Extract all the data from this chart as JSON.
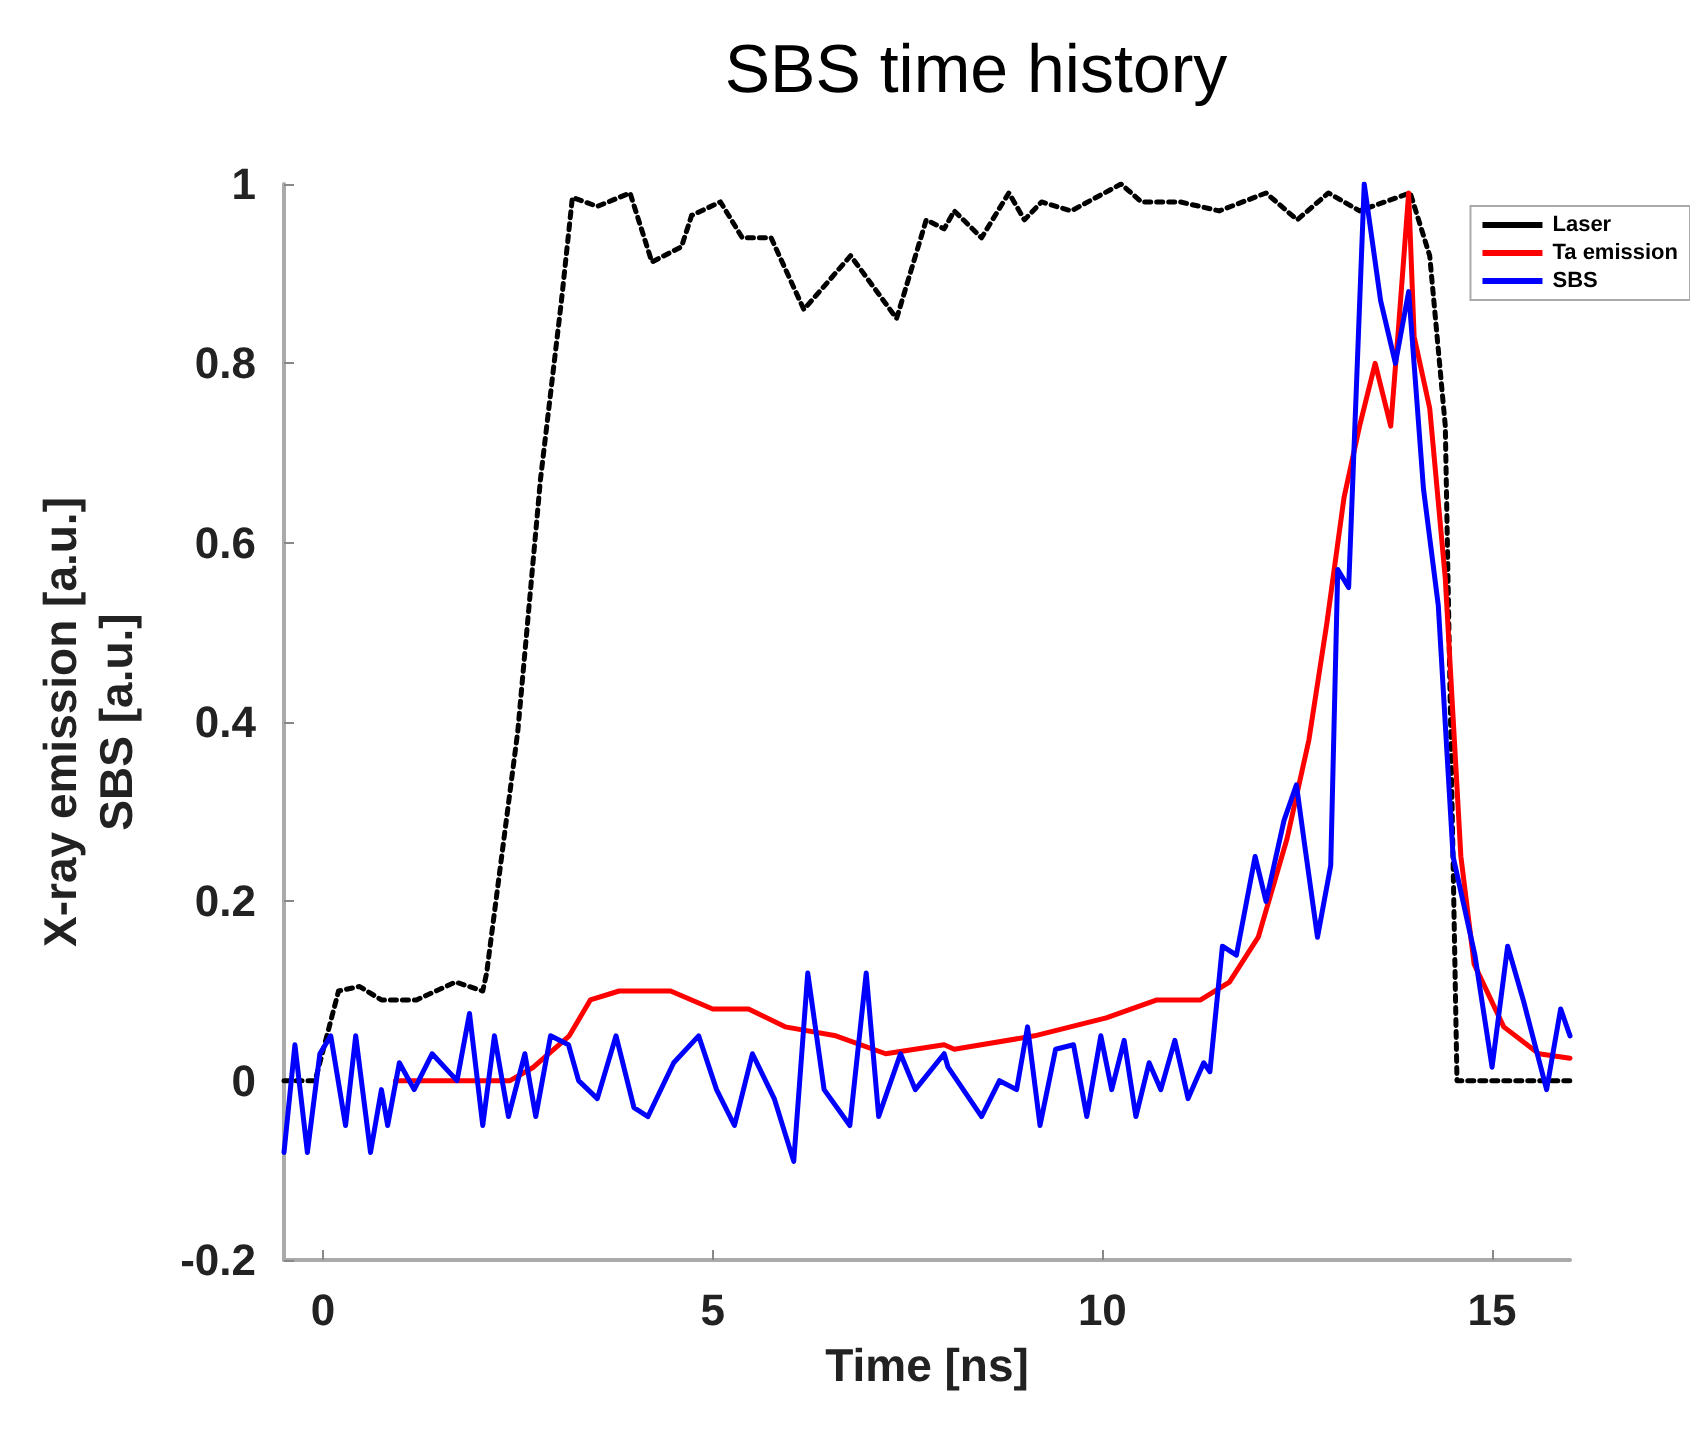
{
  "chart_data": {
    "type": "line",
    "title": "SBS time history",
    "xlabel": "Time [ns]",
    "ylabel": "X-ray emission [a.u.]\nSBS [a.u.]",
    "xlim": [
      -0.5,
      16
    ],
    "xticks": [
      0,
      5,
      10,
      15
    ],
    "ylim": [
      -0.2,
      1
    ],
    "yticks": [
      -0.2,
      0,
      0.2,
      0.4,
      0.6,
      0.8,
      1
    ],
    "grid": false,
    "legend": "top right",
    "marker": "none",
    "series": [
      {
        "name": "Laser",
        "color": "#000000",
        "line_style": "dotted",
        "x": [
          -0.5,
          -0.1,
          0.2,
          0.47,
          0.75,
          1.2,
          1.7,
          2.05,
          2.1,
          2.5,
          2.79,
          3.06,
          3.2,
          3.52,
          3.94,
          4.22,
          4.6,
          4.73,
          5.1,
          5.38,
          5.75,
          6.17,
          6.77,
          7.36,
          7.74,
          7.97,
          8.1,
          8.45,
          8.8,
          9.0,
          9.22,
          9.6,
          10.24,
          10.5,
          11.0,
          11.5,
          12.1,
          12.5,
          12.9,
          13.3,
          13.95,
          14.2,
          14.4,
          14.55,
          16.0
        ],
        "values": [
          0,
          0,
          0.1,
          0.105,
          0.09,
          0.09,
          0.11,
          0.1,
          0.12,
          0.39,
          0.67,
          0.87,
          0.985,
          0.975,
          0.99,
          0.913,
          0.93,
          0.965,
          0.98,
          0.94,
          0.94,
          0.86,
          0.92,
          0.85,
          0.96,
          0.95,
          0.97,
          0.94,
          0.99,
          0.96,
          0.98,
          0.97,
          1.0,
          0.98,
          0.98,
          0.97,
          0.99,
          0.96,
          0.99,
          0.97,
          0.99,
          0.92,
          0.73,
          0,
          0
        ]
      },
      {
        "name": "Ta emission",
        "color": "#ff0000",
        "line_style": "solid",
        "x": [
          0.93,
          2.4,
          2.7,
          3.16,
          3.43,
          3.8,
          4.46,
          5.0,
          5.46,
          5.93,
          6.58,
          7.22,
          7.97,
          8.1,
          9.13,
          10.05,
          10.7,
          11.26,
          11.63,
          12.0,
          12.37,
          12.65,
          12.88,
          13.1,
          13.3,
          13.5,
          13.7,
          13.8,
          13.93,
          14.0,
          14.2,
          14.4,
          14.6,
          14.77,
          15.15,
          15.6,
          16.0
        ],
        "values": [
          0,
          0,
          0.015,
          0.05,
          0.09,
          0.1,
          0.1,
          0.08,
          0.08,
          0.06,
          0.05,
          0.03,
          0.04,
          0.035,
          0.05,
          0.07,
          0.09,
          0.09,
          0.11,
          0.16,
          0.27,
          0.38,
          0.51,
          0.65,
          0.73,
          0.8,
          0.73,
          0.84,
          0.99,
          0.83,
          0.75,
          0.56,
          0.25,
          0.13,
          0.06,
          0.03,
          0.025
        ]
      },
      {
        "name": "SBS",
        "color": "#0000ff",
        "line_style": "solid",
        "x": [
          -0.5,
          -0.36,
          -0.2,
          -0.04,
          0.1,
          0.29,
          0.42,
          0.61,
          0.75,
          0.83,
          0.98,
          1.17,
          1.4,
          1.72,
          1.88,
          2.05,
          2.2,
          2.38,
          2.59,
          2.73,
          2.92,
          3.15,
          3.28,
          3.52,
          3.76,
          3.99,
          4.17,
          4.5,
          4.82,
          5.05,
          5.28,
          5.51,
          5.79,
          6.04,
          6.22,
          6.43,
          6.76,
          6.97,
          7.13,
          7.41,
          7.6,
          7.97,
          8.02,
          8.45,
          8.68,
          8.9,
          9.04,
          9.2,
          9.4,
          9.63,
          9.8,
          9.98,
          10.12,
          10.28,
          10.43,
          10.6,
          10.75,
          10.93,
          11.1,
          11.3,
          11.38,
          11.54,
          11.72,
          11.96,
          12.1,
          12.33,
          12.49,
          12.6,
          12.76,
          12.93,
          13.02,
          13.16,
          13.36,
          13.57,
          13.76,
          13.93,
          14.12,
          14.31,
          14.5,
          14.78,
          15.0,
          15.2,
          15.4,
          15.7,
          15.88,
          16.0
        ],
        "values": [
          -0.08,
          0.04,
          -0.08,
          0.03,
          0.05,
          -0.05,
          0.05,
          -0.08,
          -0.01,
          -0.05,
          0.02,
          -0.01,
          0.03,
          0.0,
          0.075,
          -0.05,
          0.05,
          -0.04,
          0.03,
          -0.04,
          0.05,
          0.04,
          0.0,
          -0.02,
          0.05,
          -0.03,
          -0.04,
          0.02,
          0.05,
          -0.01,
          -0.05,
          0.03,
          -0.02,
          -0.09,
          0.12,
          -0.01,
          -0.05,
          0.12,
          -0.04,
          0.03,
          -0.01,
          0.03,
          0.015,
          -0.04,
          0.0,
          -0.01,
          0.06,
          -0.05,
          0.035,
          0.04,
          -0.04,
          0.05,
          -0.01,
          0.045,
          -0.04,
          0.02,
          -0.01,
          0.045,
          -0.02,
          0.02,
          0.01,
          0.15,
          0.14,
          0.25,
          0.2,
          0.29,
          0.33,
          0.26,
          0.16,
          0.24,
          0.57,
          0.55,
          1.0,
          0.87,
          0.8,
          0.88,
          0.66,
          0.53,
          0.25,
          0.14,
          0.015,
          0.15,
          0.09,
          -0.01,
          0.08,
          0.05
        ]
      }
    ]
  }
}
